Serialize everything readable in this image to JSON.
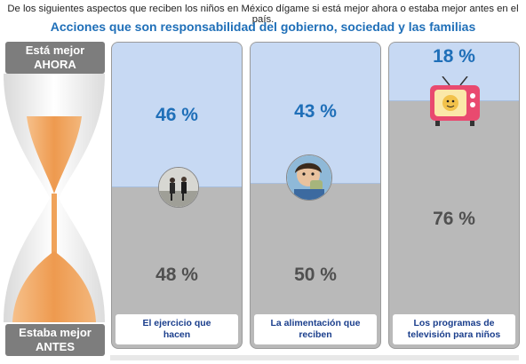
{
  "header": {
    "question": "De los siguientes aspectos que reciben los niños en México dígame si está mejor ahora o estaba mejor antes en el país.",
    "subtitle": "Acciones que son responsabilidad del gobierno, sociedad y las familias"
  },
  "legend": {
    "top_line1": "Está mejor",
    "top_line2": "AHORA",
    "bottom_line1": "Estaba mejor",
    "bottom_line2": "ANTES"
  },
  "colors": {
    "accent": "#1f6fb8",
    "now": "#c7d9f3",
    "before": "#bdbdbd",
    "sand": "#f0a35a"
  },
  "cards": [
    {
      "now_pct": "46 %",
      "before_pct": "48 %",
      "now_value": 46,
      "caption_line1": "El ejercicio que",
      "caption_line2": "hacen",
      "photo_icon": "children-exercising-photo"
    },
    {
      "now_pct": "43 %",
      "before_pct": "50 %",
      "now_value": 43,
      "caption_line1": "La alimentación que",
      "caption_line2": "reciben",
      "photo_icon": "child-eating-photo"
    },
    {
      "now_pct": "18 %",
      "before_pct": "76 %",
      "now_value": 18,
      "caption_line1": "Los programas de",
      "caption_line2": "televisión para niños",
      "photo_icon": "retro-tv-photo"
    }
  ]
}
